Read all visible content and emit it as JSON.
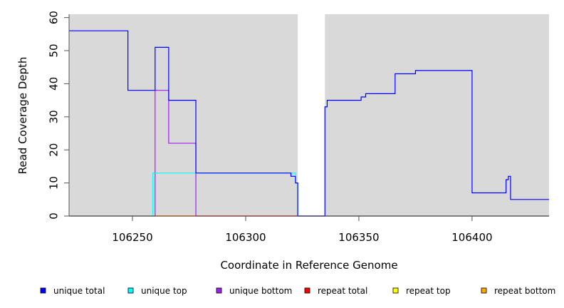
{
  "chart_data": {
    "type": "line",
    "xlabel": "Coordinate in Reference Genome",
    "ylabel": "Read Coverage Depth",
    "xlim": [
      106222,
      106434
    ],
    "ylim": [
      0,
      61
    ],
    "x_ticks": [
      106250,
      106300,
      106350,
      106400
    ],
    "y_ticks": [
      0,
      10,
      20,
      30,
      40,
      50,
      60
    ],
    "background": "#d9d9d9",
    "gap_region": [
      106323,
      106335
    ],
    "legend_placement": "bottom",
    "series": [
      {
        "name": "unique total",
        "color": "#0000ff",
        "points": [
          [
            106222,
            56
          ],
          [
            106248,
            56
          ],
          [
            106248,
            38
          ],
          [
            106260,
            38
          ],
          [
            106260,
            51
          ],
          [
            106266,
            51
          ],
          [
            106266,
            35
          ],
          [
            106278,
            35
          ],
          [
            106278,
            13
          ],
          [
            106320,
            13
          ],
          [
            106320,
            12
          ],
          [
            106322,
            12
          ],
          [
            106322,
            10
          ],
          [
            106323,
            10
          ],
          [
            106323,
            0
          ],
          [
            106335,
            0
          ],
          [
            106335,
            33
          ],
          [
            106336,
            33
          ],
          [
            106336,
            35
          ],
          [
            106351,
            35
          ],
          [
            106351,
            36
          ],
          [
            106353,
            36
          ],
          [
            106353,
            37
          ],
          [
            106366,
            37
          ],
          [
            106366,
            43
          ],
          [
            106375,
            43
          ],
          [
            106375,
            44
          ],
          [
            106400,
            44
          ],
          [
            106400,
            7
          ],
          [
            106415,
            7
          ],
          [
            106415,
            11
          ],
          [
            106416,
            11
          ],
          [
            106416,
            12
          ],
          [
            106417,
            12
          ],
          [
            106417,
            5
          ],
          [
            106434,
            5
          ]
        ]
      },
      {
        "name": "unique top",
        "color": "#00ffff",
        "points": [
          [
            106222,
            0
          ],
          [
            106259,
            0
          ],
          [
            106259,
            13
          ],
          [
            106322,
            13
          ],
          [
            106322,
            10
          ],
          [
            106323,
            10
          ],
          [
            106323,
            0
          ],
          [
            106434,
            0
          ]
        ]
      },
      {
        "name": "unique bottom",
        "color": "#a020f0",
        "points": [
          [
            106222,
            0
          ],
          [
            106260,
            0
          ],
          [
            106260,
            38
          ],
          [
            106266,
            38
          ],
          [
            106266,
            22
          ],
          [
            106278,
            22
          ],
          [
            106278,
            0
          ],
          [
            106434,
            0
          ]
        ]
      },
      {
        "name": "repeat total",
        "color": "#ff0000",
        "points": [
          [
            106222,
            0
          ],
          [
            106434,
            0
          ]
        ]
      },
      {
        "name": "repeat top",
        "color": "#ffff00",
        "points": [
          [
            106222,
            0
          ],
          [
            106434,
            0
          ]
        ]
      },
      {
        "name": "repeat bottom",
        "color": "#ffa500",
        "points": [
          [
            106222,
            0
          ],
          [
            106434,
            0
          ]
        ]
      }
    ]
  }
}
